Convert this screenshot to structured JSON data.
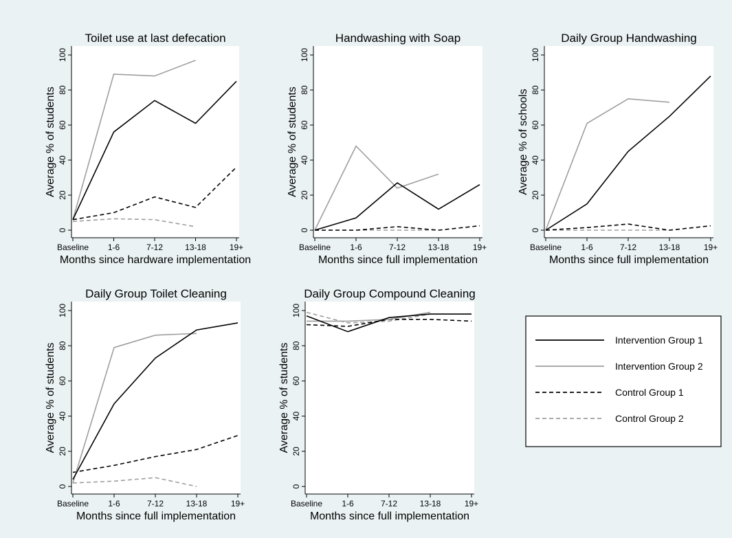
{
  "series_style": {
    "Intervention Group 1": {
      "color": "#000000",
      "dash": ""
    },
    "Intervention Group 2": {
      "color": "#9e9e9e",
      "dash": ""
    },
    "Control Group 1": {
      "color": "#000000",
      "dash": "6,4"
    },
    "Control Group 2": {
      "color": "#9e9e9e",
      "dash": "6,4"
    }
  },
  "legend": {
    "entries": [
      "Intervention Group 1",
      "Intervention Group 2",
      "Control Group 1",
      "Control Group 2"
    ]
  },
  "chart_data": [
    {
      "type": "line",
      "title": "Toilet use at last defecation",
      "xlabel": "Months since hardware implementation",
      "ylabel": "Average % of students",
      "categories": [
        "Baseline",
        "1-6",
        "7-12",
        "13-18",
        "19+"
      ],
      "yticks": [
        0,
        20,
        40,
        60,
        80,
        100
      ],
      "ylim": [
        0,
        100
      ],
      "series": [
        {
          "name": "Intervention Group 1",
          "values": [
            6,
            56,
            74,
            61,
            85
          ]
        },
        {
          "name": "Intervention Group 2",
          "values": [
            6,
            89,
            88,
            97,
            null
          ]
        },
        {
          "name": "Control Group 1",
          "values": [
            6,
            10,
            19,
            13,
            36
          ]
        },
        {
          "name": "Control Group 2",
          "values": [
            5,
            6.5,
            6,
            2,
            null
          ]
        }
      ]
    },
    {
      "type": "line",
      "title": "Handwashing with Soap",
      "xlabel": "Months since full implementation",
      "ylabel": "Average % of students",
      "categories": [
        "Baseline",
        "1-6",
        "7-12",
        "13-18",
        "19+"
      ],
      "yticks": [
        0,
        20,
        40,
        60,
        80,
        100
      ],
      "ylim": [
        0,
        100
      ],
      "series": [
        {
          "name": "Intervention Group 1",
          "values": [
            0,
            7,
            27,
            12,
            26
          ]
        },
        {
          "name": "Intervention Group 2",
          "values": [
            0,
            48,
            24,
            32,
            null
          ]
        },
        {
          "name": "Control Group 1",
          "values": [
            0,
            0,
            2,
            0,
            2.5
          ]
        },
        {
          "name": "Control Group 2",
          "values": [
            0,
            0,
            0,
            0,
            null
          ]
        }
      ]
    },
    {
      "type": "line",
      "title": "Daily Group Handwashing",
      "xlabel": "Months since full implementation",
      "ylabel": "Average % of schools",
      "categories": [
        "Baseline",
        "1-6",
        "7-12",
        "13-18",
        "19+"
      ],
      "yticks": [
        0,
        20,
        40,
        60,
        80,
        100
      ],
      "ylim": [
        0,
        100
      ],
      "series": [
        {
          "name": "Intervention Group 1",
          "values": [
            0,
            15,
            45,
            65,
            88
          ]
        },
        {
          "name": "Intervention Group 2",
          "values": [
            0,
            61,
            75,
            73,
            null
          ]
        },
        {
          "name": "Control Group 1",
          "values": [
            0,
            1.5,
            3.5,
            0,
            2.5
          ]
        },
        {
          "name": "Control Group 2",
          "values": [
            0,
            0,
            0,
            0,
            null
          ]
        }
      ]
    },
    {
      "type": "line",
      "title": "Daily Group Toilet Cleaning",
      "xlabel": "Months since full implementation",
      "ylabel": "Average % of students",
      "categories": [
        "Baseline",
        "1-6",
        "7-12",
        "13-18",
        "19+"
      ],
      "yticks": [
        0,
        20,
        40,
        60,
        80,
        100
      ],
      "ylim": [
        0,
        100
      ],
      "series": [
        {
          "name": "Intervention Group 1",
          "values": [
            4,
            47,
            73,
            89,
            93
          ]
        },
        {
          "name": "Intervention Group 2",
          "values": [
            2,
            79,
            86,
            87,
            null
          ]
        },
        {
          "name": "Control Group 1",
          "values": [
            8,
            12,
            17,
            21,
            29
          ]
        },
        {
          "name": "Control Group 2",
          "values": [
            2,
            3,
            5,
            0,
            null
          ]
        }
      ]
    },
    {
      "type": "line",
      "title": "Daily Group Compound Cleaning",
      "xlabel": "Months since full implementation",
      "ylabel": "Average % of students",
      "categories": [
        "Baseline",
        "1-6",
        "7-12",
        "13-18",
        "19+"
      ],
      "yticks": [
        0,
        20,
        40,
        60,
        80,
        100
      ],
      "ylim": [
        0,
        100
      ],
      "series": [
        {
          "name": "Intervention Group 1",
          "values": [
            97,
            88,
            96,
            98,
            98
          ]
        },
        {
          "name": "Intervention Group 2",
          "values": [
            94,
            94,
            95,
            99,
            null
          ]
        },
        {
          "name": "Control Group 1",
          "values": [
            92,
            91,
            95,
            95,
            94
          ]
        },
        {
          "name": "Control Group 2",
          "values": [
            99,
            93,
            94,
            98,
            null
          ]
        }
      ]
    }
  ]
}
